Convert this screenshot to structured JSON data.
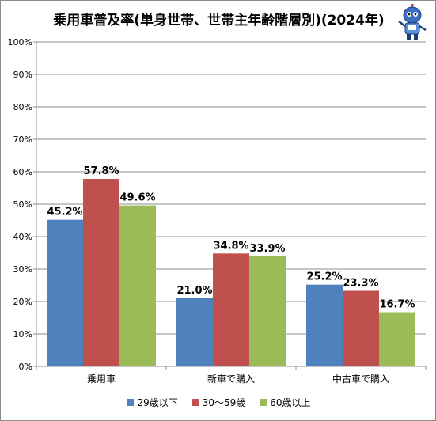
{
  "chart_data": {
    "type": "bar",
    "title": "乗用車普及率(単身世帯、世帯主年齢階層別)(2024年)",
    "categories": [
      "乗用車",
      "新車で購入",
      "中古車で購入"
    ],
    "series": [
      {
        "name": "29歳以下",
        "color": "#4f81bd",
        "values": [
          45.2,
          21.0,
          25.2
        ],
        "labels": [
          "45.2%",
          "21.0%",
          "25.2%"
        ]
      },
      {
        "name": "30～59歳",
        "color": "#c0504d",
        "values": [
          57.8,
          34.8,
          23.3
        ],
        "labels": [
          "57.8%",
          "34.8%",
          "23.3%"
        ]
      },
      {
        "name": "60歳以上",
        "color": "#9bbb59",
        "values": [
          49.6,
          33.9,
          16.7
        ],
        "labels": [
          "49.6%",
          "33.9%",
          "16.7%"
        ]
      }
    ],
    "ylim": [
      0,
      100
    ],
    "yticks": [
      "0%",
      "10%",
      "20%",
      "30%",
      "40%",
      "50%",
      "60%",
      "70%",
      "80%",
      "90%",
      "100%"
    ],
    "grid": true,
    "legend_position": "bottom",
    "mascot": "blue-robot-mascot-icon"
  }
}
